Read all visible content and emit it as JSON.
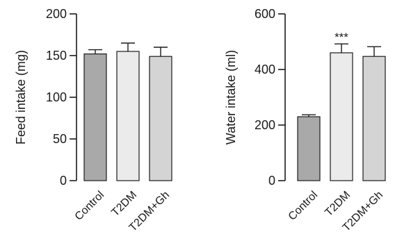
{
  "chart_data": [
    {
      "type": "bar",
      "categories": [
        "Control",
        "T2DM",
        "T2DM+Gh"
      ],
      "values": [
        152,
        155,
        149
      ],
      "errors": [
        5,
        10,
        11
      ],
      "annotations": [
        "",
        "",
        ""
      ],
      "ylabel": "Feed intake (mg)",
      "ylim": [
        0,
        200
      ],
      "yticks": [
        0,
        50,
        100,
        150,
        200
      ],
      "colors": [
        "#a9a9a9",
        "#ebebeb",
        "#d4d4d4"
      ],
      "grid": false
    },
    {
      "type": "bar",
      "categories": [
        "Control",
        "T2DM",
        "T2DM+Gh"
      ],
      "values": [
        230,
        460,
        447
      ],
      "errors": [
        7,
        32,
        35
      ],
      "annotations": [
        "",
        "***",
        ""
      ],
      "ylabel": "Water intake (ml)",
      "ylim": [
        0,
        600
      ],
      "yticks": [
        0,
        200,
        400,
        600
      ],
      "colors": [
        "#a9a9a9",
        "#ebebeb",
        "#d4d4d4"
      ],
      "grid": false
    }
  ]
}
